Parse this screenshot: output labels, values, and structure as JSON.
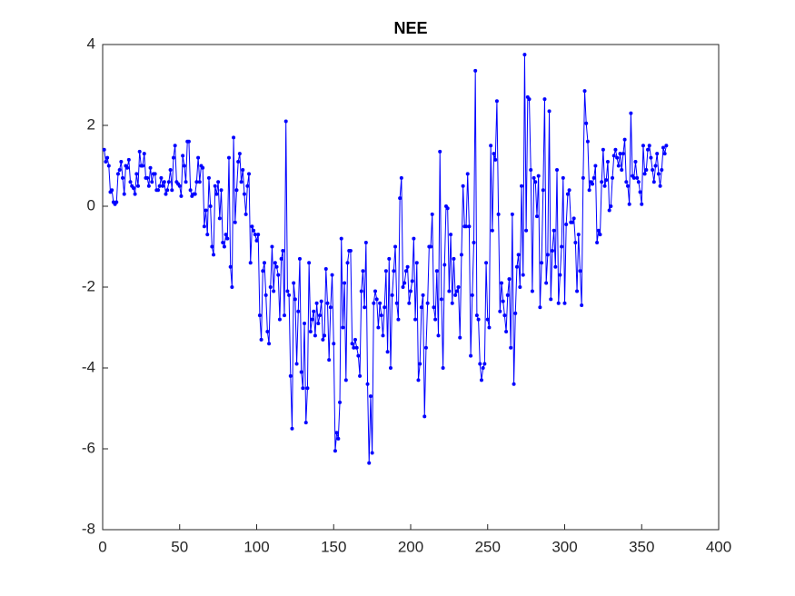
{
  "chart_data": {
    "type": "line",
    "title": "NEE",
    "color": "#0000ff",
    "marker": true,
    "xlim": [
      0,
      400
    ],
    "xticks": [
      0,
      50,
      100,
      150,
      200,
      250,
      300,
      350,
      400
    ],
    "ylim": [
      -8,
      4
    ],
    "yticks": [
      -8,
      -6,
      -4,
      -2,
      0,
      2,
      4
    ],
    "x": [
      1,
      2,
      3,
      4,
      5,
      6,
      7,
      8,
      9,
      10,
      11,
      12,
      13,
      14,
      15,
      16,
      17,
      18,
      19,
      20,
      21,
      22,
      23,
      24,
      25,
      26,
      27,
      28,
      29,
      30,
      31,
      32,
      33,
      34,
      35,
      36,
      37,
      38,
      39,
      40,
      41,
      42,
      43,
      44,
      45,
      46,
      47,
      48,
      49,
      50,
      51,
      52,
      53,
      54,
      55,
      56,
      57,
      58,
      59,
      60,
      61,
      62,
      63,
      64,
      65,
      66,
      67,
      68,
      69,
      70,
      71,
      72,
      73,
      74,
      75,
      76,
      77,
      78,
      79,
      80,
      81,
      82,
      83,
      84,
      85,
      86,
      87,
      88,
      89,
      90,
      91,
      92,
      93,
      94,
      95,
      96,
      97,
      98,
      99,
      100,
      101,
      102,
      103,
      104,
      105,
      106,
      107,
      108,
      109,
      110,
      111,
      112,
      113,
      114,
      115,
      116,
      117,
      118,
      119,
      120,
      121,
      122,
      123,
      124,
      125,
      126,
      127,
      128,
      129,
      130,
      131,
      132,
      133,
      134,
      135,
      136,
      137,
      138,
      139,
      140,
      141,
      142,
      143,
      144,
      145,
      146,
      147,
      148,
      149,
      150,
      151,
      152,
      153,
      154,
      155,
      156,
      157,
      158,
      159,
      160,
      161,
      162,
      163,
      164,
      165,
      166,
      167,
      168,
      169,
      170,
      171,
      172,
      173,
      174,
      175,
      176,
      177,
      178,
      179,
      180,
      181,
      182,
      183,
      184,
      185,
      186,
      187,
      188,
      189,
      190,
      191,
      192,
      193,
      194,
      195,
      196,
      197,
      198,
      199,
      200,
      201,
      202,
      203,
      204,
      205,
      206,
      207,
      208,
      209,
      210,
      211,
      212,
      213,
      214,
      215,
      216,
      217,
      218,
      219,
      220,
      221,
      222,
      223,
      224,
      225,
      226,
      227,
      228,
      229,
      230,
      231,
      232,
      233,
      234,
      235,
      236,
      237,
      238,
      239,
      240,
      241,
      242,
      243,
      244,
      245,
      246,
      247,
      248,
      249,
      250,
      251,
      252,
      253,
      254,
      255,
      256,
      257,
      258,
      259,
      260,
      261,
      262,
      263,
      264,
      265,
      266,
      267,
      268,
      269,
      270,
      271,
      272,
      273,
      274,
      275,
      276,
      277,
      278,
      279,
      280,
      281,
      282,
      283,
      284,
      285,
      286,
      287,
      288,
      289,
      290,
      291,
      292,
      293,
      294,
      295,
      296,
      297,
      298,
      299,
      300,
      301,
      302,
      303,
      304,
      305,
      306,
      307,
      308,
      309,
      310,
      311,
      312,
      313,
      314,
      315,
      316,
      317,
      318,
      319,
      320,
      321,
      322,
      323,
      324,
      325,
      326,
      327,
      328,
      329,
      330,
      331,
      332,
      333,
      334,
      335,
      336,
      337,
      338,
      339,
      340,
      341,
      342,
      343,
      344,
      345,
      346,
      347,
      348,
      349,
      350,
      351,
      352,
      353,
      354,
      355,
      356,
      357,
      358,
      359,
      360,
      361,
      362,
      363,
      364,
      365,
      366
    ],
    "values": [
      1.4,
      1.1,
      1.2,
      1.0,
      0.35,
      0.4,
      0.1,
      0.05,
      0.1,
      0.8,
      0.9,
      1.1,
      0.7,
      0.3,
      1.0,
      0.95,
      1.15,
      0.6,
      0.5,
      0.45,
      0.3,
      0.8,
      0.5,
      1.35,
      1.0,
      1.0,
      1.3,
      0.7,
      0.7,
      0.5,
      0.95,
      0.6,
      0.8,
      0.8,
      0.4,
      0.4,
      0.5,
      0.7,
      0.5,
      0.6,
      0.3,
      0.4,
      0.6,
      0.9,
      0.4,
      1.2,
      1.5,
      0.6,
      0.55,
      0.5,
      0.25,
      1.25,
      1.0,
      0.6,
      1.6,
      1.6,
      0.4,
      0.25,
      0.3,
      0.3,
      0.6,
      1.2,
      0.6,
      1.0,
      0.95,
      -0.5,
      -0.1,
      -0.7,
      0.7,
      0.0,
      -1.0,
      -1.2,
      0.5,
      0.3,
      0.6,
      -0.3,
      0.4,
      -0.9,
      -1.0,
      -0.7,
      -0.8,
      1.2,
      -1.5,
      -2.0,
      1.7,
      -0.4,
      0.4,
      1.1,
      1.3,
      0.6,
      0.9,
      0.3,
      -0.2,
      0.5,
      0.8,
      -1.4,
      -0.5,
      -0.6,
      -0.7,
      -0.85,
      -0.7,
      -2.7,
      -3.3,
      -1.6,
      -1.4,
      -2.2,
      -3.1,
      -3.4,
      -2.0,
      -1.0,
      -2.1,
      -1.4,
      -1.5,
      -1.7,
      -2.8,
      -1.3,
      -1.1,
      -2.7,
      2.1,
      -2.1,
      -2.2,
      -4.2,
      -5.5,
      -1.9,
      -2.3,
      -3.9,
      -2.6,
      -1.3,
      -4.1,
      -4.5,
      -2.9,
      -5.35,
      -4.5,
      -1.4,
      -3.1,
      -2.8,
      -2.6,
      -3.2,
      -2.4,
      -2.9,
      -2.7,
      -2.35,
      -3.3,
      -3.2,
      -1.55,
      -2.4,
      -3.8,
      -2.5,
      -1.7,
      -3.4,
      -6.05,
      -5.6,
      -5.75,
      -4.85,
      -0.8,
      -3.0,
      -1.9,
      -4.3,
      -1.4,
      -1.1,
      -1.1,
      -3.4,
      -3.5,
      -3.3,
      -3.5,
      -3.7,
      -4.2,
      -2.1,
      -1.6,
      -2.5,
      -0.9,
      -4.4,
      -6.35,
      -4.7,
      -6.1,
      -2.4,
      -2.1,
      -2.3,
      -3.0,
      -2.4,
      -2.7,
      -3.2,
      -2.5,
      -1.6,
      -3.6,
      -1.3,
      -4.0,
      -2.2,
      -1.6,
      -1.0,
      -2.4,
      -2.8,
      0.2,
      0.7,
      -2.0,
      -1.9,
      -1.6,
      -1.5,
      -2.4,
      -2.1,
      -1.85,
      -0.8,
      -2.8,
      -1.4,
      -4.3,
      -3.9,
      -2.5,
      -2.2,
      -5.2,
      -3.5,
      -2.4,
      -1.0,
      -1.0,
      -0.2,
      -2.5,
      -2.8,
      -1.6,
      -3.2,
      1.35,
      -2.3,
      -4.0,
      -1.45,
      0.0,
      -0.05,
      -2.1,
      -0.7,
      -2.4,
      -1.3,
      -2.2,
      -2.1,
      -2.0,
      -3.25,
      -1.2,
      0.5,
      -0.5,
      -0.5,
      0.8,
      -0.5,
      -3.7,
      -2.2,
      -0.9,
      3.35,
      -2.7,
      -2.8,
      -3.9,
      -4.3,
      -4.0,
      -3.9,
      -1.4,
      -2.8,
      -3.0,
      1.5,
      -0.6,
      1.3,
      1.15,
      2.6,
      -0.2,
      -2.6,
      -1.9,
      -2.35,
      -2.7,
      -3.1,
      -2.2,
      -1.8,
      -3.5,
      -0.2,
      -4.4,
      -2.65,
      -1.5,
      -1.2,
      -2.0,
      0.5,
      -1.7,
      3.75,
      -0.6,
      2.7,
      2.65,
      0.9,
      -2.1,
      0.7,
      0.6,
      -0.25,
      0.75,
      -2.5,
      -1.4,
      0.4,
      2.65,
      -1.9,
      -1.2,
      2.35,
      -2.3,
      -1.1,
      -0.6,
      -1.5,
      0.9,
      -2.4,
      -1.7,
      -1.0,
      0.7,
      -2.4,
      -0.45,
      0.3,
      0.4,
      -0.4,
      -0.4,
      -0.3,
      -0.9,
      -2.1,
      -0.7,
      -1.6,
      -2.45,
      0.7,
      2.85,
      2.05,
      1.6,
      0.4,
      0.6,
      0.55,
      0.7,
      1.0,
      -0.9,
      -0.6,
      -0.7,
      0.6,
      1.4,
      0.5,
      0.65,
      1.1,
      -0.1,
      0.0,
      0.7,
      1.25,
      1.4,
      1.2,
      1.0,
      1.3,
      0.9,
      1.3,
      1.65,
      0.6,
      0.5,
      0.05,
      2.3,
      0.75,
      0.7,
      1.1,
      0.7,
      0.6,
      0.35,
      0.05,
      1.5,
      0.8,
      0.9,
      1.4,
      1.5,
      1.2,
      0.9,
      0.6,
      1.0,
      1.3,
      0.8,
      0.5,
      0.9,
      1.45,
      1.3,
      1.5
    ]
  }
}
